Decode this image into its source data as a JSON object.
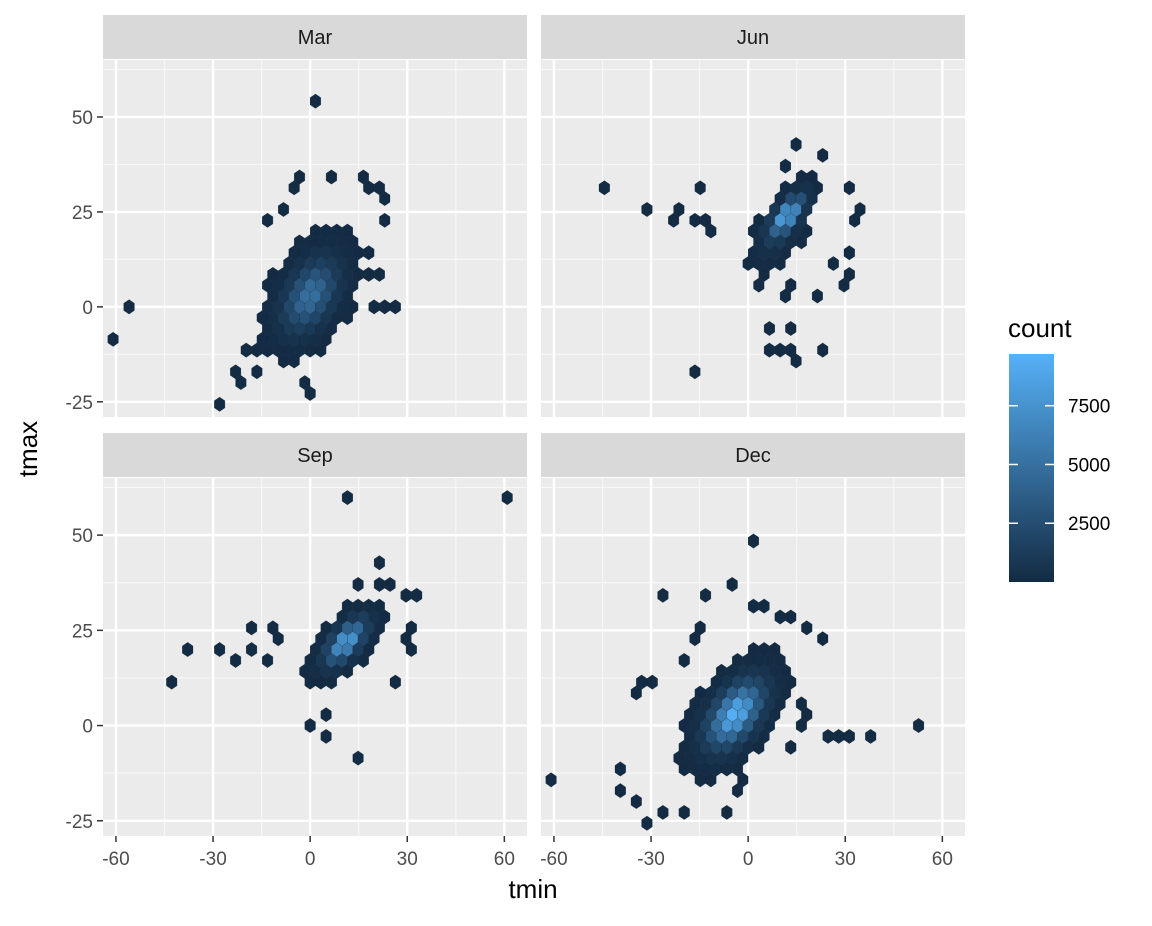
{
  "chart_data": {
    "type": "heatmap",
    "subtype": "hexbin-facets",
    "xlabel": "tmin",
    "ylabel": "tmax",
    "xlim": [
      -64,
      67
    ],
    "ylim": [
      -29,
      65
    ],
    "x_ticks": [
      -60,
      -30,
      0,
      30,
      60
    ],
    "x_tick_labels": [
      "-60",
      "-30",
      "0",
      "30",
      "60"
    ],
    "y_ticks": [
      -25,
      0,
      25,
      50
    ],
    "y_tick_labels": [
      "-25",
      "0",
      "25",
      "50"
    ],
    "grid": true,
    "hex_size_data": 1.9,
    "legend": {
      "title": "count",
      "position": "right",
      "min": 0,
      "max": 9700,
      "ticks": [
        2500,
        5000,
        7500
      ],
      "tick_labels": [
        "2500",
        "5000",
        "7500"
      ],
      "color_low": "#132B43",
      "color_high": "#56B1F7"
    },
    "panels": [
      {
        "label": "Mar",
        "core": [
          {
            "cx": 0,
            "cy": 3,
            "sx": 11,
            "sy": 11,
            "angle_deg": 52,
            "peak": 5200
          }
        ],
        "outliers": [
          [
            -60,
            -9
          ],
          [
            -56,
            1
          ],
          [
            2,
            53
          ],
          [
            -2,
            33
          ],
          [
            0,
            -24
          ],
          [
            -3,
            -19
          ],
          [
            -27,
            -26
          ],
          [
            -20,
            -21
          ],
          [
            -24,
            -16
          ],
          [
            -16,
            -16
          ],
          [
            -8,
            -14
          ],
          [
            20,
            1
          ],
          [
            24,
            1
          ],
          [
            26,
            -1
          ],
          [
            18,
            9
          ],
          [
            22,
            9
          ],
          [
            14,
            11
          ],
          [
            18,
            13
          ],
          [
            -17,
            -11
          ],
          [
            -21,
            -11
          ],
          [
            19,
            31
          ],
          [
            22,
            31
          ],
          [
            16,
            33
          ],
          [
            8,
            33
          ],
          [
            -6,
            31
          ],
          [
            -8,
            26
          ],
          [
            -12,
            24
          ],
          [
            24,
            24
          ],
          [
            22,
            28
          ]
        ]
      },
      {
        "label": "Jun",
        "core": [
          {
            "cx": 12,
            "cy": 24,
            "sx": 7,
            "sy": 5,
            "angle_deg": 45,
            "peak": 9700
          },
          {
            "cx": 9,
            "cy": 18,
            "sx": 8,
            "sy": 7,
            "angle_deg": 45,
            "peak": 700
          }
        ],
        "outliers": [
          [
            -46,
            30
          ],
          [
            -31,
            27
          ],
          [
            -18,
            -18
          ],
          [
            8,
            -5
          ],
          [
            12,
            -5
          ],
          [
            8,
            -10
          ],
          [
            10,
            -12
          ],
          [
            14,
            -12
          ],
          [
            16,
            -14
          ],
          [
            22,
            -12
          ],
          [
            12,
            5
          ],
          [
            12,
            3
          ],
          [
            22,
            3
          ],
          [
            28,
            5
          ],
          [
            26,
            11
          ],
          [
            30,
            9
          ],
          [
            32,
            15
          ],
          [
            34,
            23
          ],
          [
            34,
            25
          ],
          [
            30,
            30
          ],
          [
            24,
            39
          ],
          [
            14,
            42
          ],
          [
            10,
            38
          ],
          [
            -14,
            32
          ],
          [
            -20,
            26
          ],
          [
            -22,
            24
          ],
          [
            -18,
            22
          ],
          [
            -12,
            24
          ],
          [
            -10,
            20
          ],
          [
            4,
            5
          ]
        ]
      },
      {
        "label": "Sep",
        "core": [
          {
            "cx": 11,
            "cy": 22,
            "sx": 8,
            "sy": 6,
            "angle_deg": 42,
            "peak": 8800
          }
        ],
        "outliers": [
          [
            10,
            61
          ],
          [
            62,
            61
          ],
          [
            20,
            44
          ],
          [
            -42,
            11
          ],
          [
            -38,
            21
          ],
          [
            -27,
            21
          ],
          [
            -18,
            19
          ],
          [
            -22,
            16
          ],
          [
            -14,
            16
          ],
          [
            -18,
            26
          ],
          [
            -12,
            26
          ],
          [
            14,
            -9
          ],
          [
            4,
            -2
          ],
          [
            0,
            1
          ],
          [
            6,
            3
          ],
          [
            28,
            33
          ],
          [
            32,
            33
          ],
          [
            26,
            11
          ],
          [
            30,
            21
          ],
          [
            30,
            23
          ],
          [
            30,
            27
          ],
          [
            16,
            38
          ],
          [
            22,
            38
          ],
          [
            24,
            36
          ],
          [
            -10,
            24
          ]
        ]
      },
      {
        "label": "Dec",
        "core": [
          {
            "cx": -4,
            "cy": 3,
            "sx": 11,
            "sy": 10,
            "angle_deg": 45,
            "peak": 9700
          }
        ],
        "outliers": [
          [
            -60,
            -14
          ],
          [
            2,
            48
          ],
          [
            -26,
            33
          ],
          [
            -12,
            33
          ],
          [
            -4,
            36
          ],
          [
            0,
            31
          ],
          [
            -36,
            8
          ],
          [
            -32,
            10
          ],
          [
            -28,
            12
          ],
          [
            -20,
            18
          ],
          [
            -18,
            22
          ],
          [
            -16,
            26
          ],
          [
            -6,
            -24
          ],
          [
            -30,
            -26
          ],
          [
            -26,
            -24
          ],
          [
            -20,
            -24
          ],
          [
            14,
            -6
          ],
          [
            16,
            0
          ],
          [
            18,
            3
          ],
          [
            16,
            6
          ],
          [
            26,
            -2
          ],
          [
            28,
            -2
          ],
          [
            30,
            -2
          ],
          [
            38,
            -2
          ],
          [
            52,
            1
          ],
          [
            -36,
            -20
          ],
          [
            -40,
            -18
          ],
          [
            -38,
            -12
          ],
          [
            -4,
            -18
          ],
          [
            -2,
            -15
          ],
          [
            18,
            26
          ],
          [
            14,
            28
          ],
          [
            10,
            28
          ],
          [
            6,
            30
          ],
          [
            22,
            22
          ]
        ]
      }
    ]
  }
}
